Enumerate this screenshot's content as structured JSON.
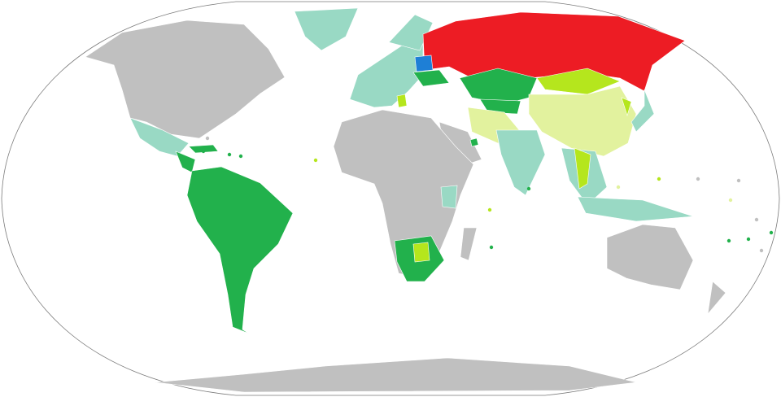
{
  "map": {
    "projection": "robinson",
    "ocean_color": "#ffffff",
    "outline_color": "#7a7a7a",
    "colors": {
      "no_data": "#c0c0c0",
      "red": "#ed1c24",
      "blue": "#1e7fd6",
      "green": "#22b14c",
      "light_green": "#b5e61d",
      "pale_yellow": "#e2f29e",
      "teal": "#99d9c4"
    },
    "regions": [
      {
        "id": "north-america",
        "color": "no_data"
      },
      {
        "id": "greenland",
        "color": "teal"
      },
      {
        "id": "mexico",
        "color": "teal"
      },
      {
        "id": "central-america",
        "color": "green"
      },
      {
        "id": "caribbean",
        "color": "green"
      },
      {
        "id": "south-america",
        "color": "green"
      },
      {
        "id": "europe",
        "color": "teal"
      },
      {
        "id": "scandinavia",
        "color": "teal"
      },
      {
        "id": "russia",
        "color": "red"
      },
      {
        "id": "belarus",
        "color": "blue"
      },
      {
        "id": "ukraine",
        "color": "green"
      },
      {
        "id": "serbia",
        "color": "light_green"
      },
      {
        "id": "kazakhstan",
        "color": "green"
      },
      {
        "id": "central-asia",
        "color": "green"
      },
      {
        "id": "mongolia",
        "color": "light_green"
      },
      {
        "id": "china",
        "color": "pale_yellow"
      },
      {
        "id": "iran-region",
        "color": "pale_yellow"
      },
      {
        "id": "arabia",
        "color": "no_data"
      },
      {
        "id": "uae",
        "color": "green"
      },
      {
        "id": "africa",
        "color": "no_data"
      },
      {
        "id": "east-africa",
        "color": "teal"
      },
      {
        "id": "southern-africa",
        "color": "green"
      },
      {
        "id": "botswana",
        "color": "light_green"
      },
      {
        "id": "madagascar",
        "color": "no_data"
      },
      {
        "id": "india",
        "color": "teal"
      },
      {
        "id": "southeast-asia",
        "color": "teal"
      },
      {
        "id": "thailand",
        "color": "light_green"
      },
      {
        "id": "korea",
        "color": "light_green"
      },
      {
        "id": "japan",
        "color": "teal"
      },
      {
        "id": "indonesia",
        "color": "teal"
      },
      {
        "id": "australia",
        "color": "no_data"
      },
      {
        "id": "new-zealand",
        "color": "no_data"
      },
      {
        "id": "antarctica",
        "color": "no_data"
      }
    ]
  }
}
